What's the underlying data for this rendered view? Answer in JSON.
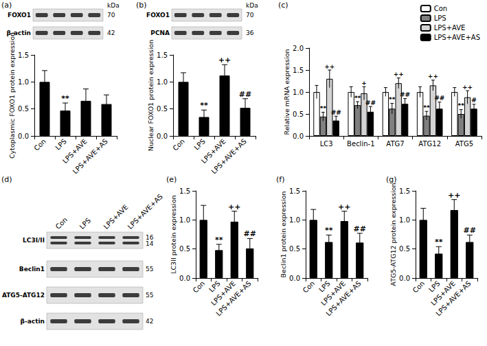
{
  "chart_data": [
    {
      "type": "bar",
      "y_label": "Cytoplasmic FOXO1 protein expression",
      "categories": [
        "Con",
        "LPS",
        "LPS+AVE",
        "LPS+AVE+AS"
      ],
      "values": [
        1.0,
        0.47,
        0.65,
        0.59
      ],
      "errors": [
        0.21,
        0.14,
        0.22,
        0.17
      ],
      "annotations": [
        null,
        "**",
        null,
        null
      ],
      "color": "#000000",
      "ylim": [
        0,
        1.5
      ],
      "yticks": [
        {
          "value": 0,
          "label": "0.0"
        },
        0.5,
        {
          "value": 1,
          "label": "1.0"
        },
        1.5
      ],
      "grid": false
    },
    {
      "type": "bar",
      "y_label": "Nuclear FOXO1 protein expression",
      "categories": [
        "Con",
        "LPS",
        "LPS+AVE",
        "LPS+AVE+AS"
      ],
      "values": [
        1.0,
        0.35,
        1.12,
        0.52
      ],
      "errors": [
        0.17,
        0.13,
        0.2,
        0.17
      ],
      "annotations": [
        null,
        "**",
        "++",
        "##"
      ],
      "color": "#000000",
      "ylim": [
        0,
        1.5
      ],
      "yticks": [
        {
          "value": 0,
          "label": "0.0"
        },
        0.5,
        {
          "value": 1,
          "label": "1.0"
        },
        1.5
      ],
      "grid": false
    },
    {
      "type": "bar",
      "title": "(c)",
      "y_label": "Relative mRNA expression",
      "categories": [
        "LC3",
        "Beclin-1",
        "ATG7",
        "ATG12",
        "ATG5"
      ],
      "series": [
        {
          "name": "Con",
          "color": "#ffffff",
          "values": [
            1.0,
            1.0,
            1.0,
            1.0,
            1.0
          ],
          "errors": [
            0.15,
            0.12,
            0.1,
            0.12,
            0.1
          ],
          "annotations": [
            null,
            null,
            null,
            null,
            null
          ]
        },
        {
          "name": "LPS",
          "color": "#808080",
          "values": [
            0.44,
            0.7,
            0.62,
            0.46,
            0.5
          ],
          "errors": [
            0.1,
            0.08,
            0.12,
            0.1,
            0.1
          ],
          "annotations": [
            "**",
            "**",
            "**",
            "**",
            "**"
          ]
        },
        {
          "name": "LPS+AVE",
          "color": "#d4d4d4",
          "values": [
            1.3,
            0.97,
            1.2,
            1.15,
            0.88
          ],
          "errors": [
            0.2,
            0.15,
            0.12,
            0.12,
            0.15
          ],
          "annotations": [
            "++",
            "+",
            "++",
            "++",
            "++"
          ]
        },
        {
          "name": "LPS+AVE+AS",
          "color": "#000000",
          "values": [
            0.35,
            0.55,
            0.73,
            0.62,
            0.62
          ],
          "errors": [
            0.1,
            0.12,
            0.12,
            0.15,
            0.1
          ],
          "annotations": [
            "##",
            "##",
            "##",
            "##",
            "#"
          ]
        }
      ],
      "legend": "upper right",
      "ylim": [
        0,
        2
      ],
      "yticks": [
        {
          "value": 0,
          "label": "0.0"
        },
        0.5,
        {
          "value": 1,
          "label": "1.0"
        },
        1.5,
        {
          "value": 2,
          "label": "2.0"
        }
      ],
      "grid": false
    },
    {
      "type": "bar",
      "title": "(e)",
      "y_label": "LC3II protein expression",
      "categories": [
        "Con",
        "LPS",
        "LPS+AVE",
        "LPS+AVE+AS"
      ],
      "values": [
        1.0,
        0.48,
        0.97,
        0.51
      ],
      "errors": [
        0.25,
        0.1,
        0.18,
        0.17
      ],
      "annotations": [
        null,
        "**",
        "++",
        "##"
      ],
      "color": "#000000",
      "ylim": [
        0,
        1.5
      ],
      "yticks": [
        {
          "value": 0,
          "label": "0.0"
        },
        0.5,
        {
          "value": 1,
          "label": "1.0"
        },
        1.5
      ],
      "grid": false
    },
    {
      "type": "bar",
      "title": "(f)",
      "y_label": "Beclin1 protein expression",
      "categories": [
        "Con",
        "LPS",
        "LPS+AVE",
        "LPS+AVE+AS"
      ],
      "values": [
        1.0,
        0.62,
        0.98,
        0.61
      ],
      "errors": [
        0.18,
        0.12,
        0.17,
        0.16
      ],
      "annotations": [
        null,
        "**",
        "++",
        "##"
      ],
      "color": "#000000",
      "ylim": [
        0,
        1.5
      ],
      "yticks": [
        {
          "value": 0,
          "label": "0.0"
        },
        0.5,
        {
          "value": 1,
          "label": "1.0"
        },
        1.5
      ],
      "grid": false
    },
    {
      "type": "bar",
      "title": "(g)",
      "y_label": "ATG5-ATG12 protein expression",
      "categories": [
        "Con",
        "LPS",
        "LPS+AVE",
        "LPS+AVE+AS"
      ],
      "values": [
        1.0,
        0.42,
        1.17,
        0.62
      ],
      "errors": [
        0.2,
        0.12,
        0.18,
        0.12
      ],
      "annotations": [
        null,
        "**",
        "++",
        "##"
      ],
      "color": "#000000",
      "ylim": [
        0,
        1.5
      ],
      "yticks": [
        {
          "value": 0,
          "label": "0.0"
        },
        0.5,
        {
          "value": 1,
          "label": "1.0"
        },
        1.5
      ],
      "grid": false
    }
  ],
  "blots": [
    {
      "title": "(a)",
      "unit": "kDa",
      "rows": [
        {
          "label": "FOXO1",
          "kda": [
            70
          ]
        },
        {
          "label": "β-actin",
          "kda": [
            42
          ]
        }
      ]
    },
    {
      "title": "(b)",
      "unit": "kDa",
      "rows": [
        {
          "label": "FOXO1",
          "kda": [
            70
          ]
        },
        {
          "label": "PCNA",
          "kda": [
            36
          ]
        }
      ]
    },
    {
      "title": "(d)",
      "lanes": [
        "Con",
        "LPS",
        "LPS+AVE",
        "LPS+AVE+AS"
      ],
      "rows": [
        {
          "label": "LC3I/II",
          "kda": [
            16,
            14
          ]
        },
        {
          "label": "Beclin1",
          "kda": [
            55
          ]
        },
        {
          "label": "ATG5-ATG12",
          "kda": [
            55
          ]
        },
        {
          "label": "β-actin",
          "kda": [
            42
          ]
        }
      ]
    }
  ]
}
